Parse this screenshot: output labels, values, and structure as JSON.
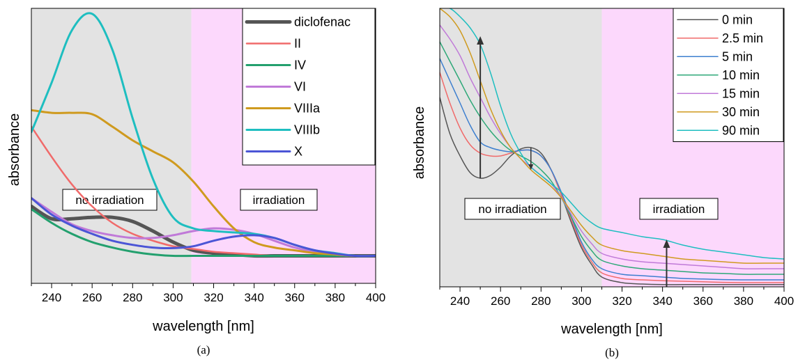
{
  "chart_data": [
    {
      "type": "line",
      "panel_label": "(a)",
      "xlabel": "wavelength [nm]",
      "ylabel": "absorbance",
      "xlim": [
        230,
        400
      ],
      "ylim": [
        0,
        1.0
      ],
      "xticks": [
        240,
        260,
        280,
        300,
        320,
        340,
        360,
        380,
        400
      ],
      "grid": false,
      "legend_position": "top-right",
      "regions": [
        {
          "label": "no irradiation",
          "from": 230,
          "to": 309,
          "color": "#e3e3e3"
        },
        {
          "label": "irradiation",
          "from": 309,
          "to": 400,
          "color": "#fcd8fc"
        }
      ],
      "series": [
        {
          "name": "diclofenac",
          "color": "#555555",
          "width": 5,
          "x": [
            230,
            240,
            250,
            260,
            270,
            280,
            290,
            300,
            310,
            320,
            330,
            340,
            350,
            360,
            370,
            380,
            390,
            400
          ],
          "y": [
            0.28,
            0.235,
            0.235,
            0.24,
            0.24,
            0.225,
            0.19,
            0.15,
            0.12,
            0.11,
            0.105,
            0.1,
            0.1,
            0.1,
            0.1,
            0.1,
            0.1,
            0.1
          ]
        },
        {
          "name": "II",
          "color": "#f06a6a",
          "width": 2.5,
          "x": [
            230,
            240,
            250,
            260,
            270,
            280,
            290,
            300,
            310,
            320,
            330,
            340,
            350,
            360,
            370,
            380,
            390,
            400
          ],
          "y": [
            0.57,
            0.46,
            0.36,
            0.28,
            0.22,
            0.18,
            0.155,
            0.135,
            0.125,
            0.115,
            0.11,
            0.105,
            0.1,
            0.1,
            0.1,
            0.1,
            0.1,
            0.1
          ]
        },
        {
          "name": "IV",
          "color": "#23a06e",
          "width": 3,
          "x": [
            230,
            240,
            250,
            260,
            270,
            280,
            290,
            300,
            310,
            320,
            330,
            340,
            350,
            360,
            370,
            380,
            390,
            400
          ],
          "y": [
            0.27,
            0.22,
            0.18,
            0.15,
            0.13,
            0.115,
            0.105,
            0.1,
            0.1,
            0.1,
            0.1,
            0.1,
            0.1,
            0.1,
            0.1,
            0.1,
            0.1,
            0.1
          ]
        },
        {
          "name": "VI",
          "color": "#c07ad8",
          "width": 3,
          "x": [
            230,
            240,
            250,
            260,
            270,
            280,
            290,
            300,
            310,
            320,
            330,
            340,
            350,
            360,
            370,
            380,
            390,
            400
          ],
          "y": [
            0.31,
            0.26,
            0.215,
            0.19,
            0.175,
            0.165,
            0.165,
            0.175,
            0.19,
            0.2,
            0.195,
            0.18,
            0.155,
            0.13,
            0.115,
            0.105,
            0.1,
            0.1
          ]
        },
        {
          "name": "VIIIa",
          "color": "#cf9a1e",
          "width": 3,
          "x": [
            230,
            240,
            250,
            260,
            270,
            280,
            290,
            300,
            310,
            320,
            330,
            340,
            350,
            360,
            370,
            380,
            390,
            400
          ],
          "y": [
            0.63,
            0.62,
            0.62,
            0.615,
            0.57,
            0.52,
            0.48,
            0.44,
            0.37,
            0.28,
            0.2,
            0.15,
            0.13,
            0.12,
            0.11,
            0.105,
            0.1,
            0.1
          ]
        },
        {
          "name": "VIIIb",
          "color": "#1ebec0",
          "width": 3,
          "x": [
            230,
            240,
            250,
            260,
            270,
            280,
            290,
            300,
            310,
            320,
            330,
            340,
            350,
            360,
            370,
            380,
            390,
            400
          ],
          "y": [
            0.55,
            0.73,
            0.92,
            0.98,
            0.85,
            0.6,
            0.38,
            0.24,
            0.2,
            0.19,
            0.185,
            0.18,
            0.165,
            0.14,
            0.12,
            0.11,
            0.1,
            0.1
          ]
        },
        {
          "name": "X",
          "color": "#4b55d6",
          "width": 3,
          "x": [
            230,
            240,
            250,
            260,
            270,
            280,
            290,
            300,
            310,
            320,
            330,
            340,
            350,
            360,
            370,
            380,
            390,
            400
          ],
          "y": [
            0.31,
            0.25,
            0.21,
            0.18,
            0.155,
            0.14,
            0.13,
            0.128,
            0.135,
            0.155,
            0.17,
            0.175,
            0.165,
            0.14,
            0.12,
            0.108,
            0.1,
            0.1
          ]
        }
      ]
    },
    {
      "type": "line",
      "panel_label": "(b)",
      "xlabel": "wavelength [nm]",
      "ylabel": "absorbance",
      "xlim": [
        230,
        400
      ],
      "ylim": [
        0,
        1.0
      ],
      "xticks": [
        240,
        260,
        280,
        300,
        320,
        340,
        360,
        380,
        400
      ],
      "grid": false,
      "legend_position": "top-right",
      "regions": [
        {
          "label": "no irradiation",
          "from": 230,
          "to": 310,
          "color": "#e3e3e3"
        },
        {
          "label": "irradiation",
          "from": 310,
          "to": 400,
          "color": "#fcd8fc"
        }
      ],
      "annotations": [
        {
          "type": "arrow",
          "x": 250,
          "from": 0.39,
          "to": 0.9
        },
        {
          "type": "arrow",
          "x": 275,
          "from": 0.5,
          "to": 0.42
        },
        {
          "type": "arrow",
          "x": 342,
          "from": 0.0,
          "to": 0.17
        }
      ],
      "series": [
        {
          "name": "0 min",
          "color": "#555555",
          "width": 1.5,
          "x": [
            230,
            235,
            240,
            245,
            250,
            255,
            260,
            265,
            270,
            275,
            280,
            285,
            290,
            295,
            300,
            305,
            310,
            320,
            330,
            340,
            350,
            360,
            370,
            380,
            390,
            400
          ],
          "y": [
            0.68,
            0.55,
            0.47,
            0.41,
            0.39,
            0.4,
            0.43,
            0.47,
            0.495,
            0.5,
            0.48,
            0.42,
            0.33,
            0.23,
            0.14,
            0.08,
            0.035,
            0.015,
            0.01,
            0.008,
            0.008,
            0.008,
            0.008,
            0.008,
            0.008,
            0.008
          ]
        },
        {
          "name": "2.5 min",
          "color": "#f06a6a",
          "width": 1.5,
          "x": [
            230,
            235,
            240,
            245,
            250,
            255,
            260,
            265,
            270,
            275,
            280,
            285,
            290,
            295,
            300,
            305,
            310,
            320,
            330,
            340,
            350,
            360,
            370,
            380,
            390,
            400
          ],
          "y": [
            0.77,
            0.66,
            0.57,
            0.51,
            0.48,
            0.47,
            0.47,
            0.48,
            0.49,
            0.49,
            0.47,
            0.42,
            0.33,
            0.24,
            0.15,
            0.09,
            0.05,
            0.03,
            0.025,
            0.022,
            0.02,
            0.018,
            0.016,
            0.015,
            0.015,
            0.015
          ]
        },
        {
          "name": "5 min",
          "color": "#3d7fcf",
          "width": 1.5,
          "x": [
            230,
            235,
            240,
            245,
            250,
            255,
            260,
            265,
            270,
            275,
            280,
            285,
            290,
            295,
            300,
            305,
            310,
            320,
            330,
            340,
            350,
            360,
            370,
            380,
            390,
            400
          ],
          "y": [
            0.82,
            0.74,
            0.66,
            0.58,
            0.52,
            0.5,
            0.49,
            0.485,
            0.49,
            0.49,
            0.47,
            0.42,
            0.34,
            0.25,
            0.16,
            0.1,
            0.065,
            0.045,
            0.04,
            0.035,
            0.03,
            0.028,
            0.026,
            0.025,
            0.025,
            0.025
          ]
        },
        {
          "name": "10 min",
          "color": "#2ea878",
          "width": 1.5,
          "x": [
            230,
            235,
            240,
            245,
            250,
            255,
            260,
            265,
            270,
            275,
            280,
            285,
            290,
            295,
            300,
            305,
            310,
            320,
            330,
            340,
            350,
            360,
            370,
            380,
            390,
            400
          ],
          "y": [
            0.88,
            0.81,
            0.74,
            0.67,
            0.61,
            0.56,
            0.52,
            0.49,
            0.47,
            0.45,
            0.42,
            0.38,
            0.32,
            0.25,
            0.18,
            0.13,
            0.095,
            0.075,
            0.065,
            0.06,
            0.055,
            0.05,
            0.048,
            0.045,
            0.045,
            0.045
          ]
        },
        {
          "name": "15 min",
          "color": "#c07ad8",
          "width": 1.5,
          "x": [
            230,
            235,
            240,
            245,
            250,
            255,
            260,
            265,
            270,
            275,
            280,
            285,
            290,
            295,
            300,
            305,
            310,
            320,
            330,
            340,
            350,
            360,
            370,
            380,
            390,
            400
          ],
          "y": [
            0.94,
            0.89,
            0.83,
            0.75,
            0.68,
            0.61,
            0.55,
            0.5,
            0.46,
            0.43,
            0.4,
            0.37,
            0.32,
            0.26,
            0.2,
            0.155,
            0.12,
            0.1,
            0.09,
            0.085,
            0.08,
            0.075,
            0.07,
            0.065,
            0.065,
            0.065
          ]
        },
        {
          "name": "30 min",
          "color": "#cf9a1e",
          "width": 1.5,
          "x": [
            230,
            235,
            240,
            245,
            250,
            255,
            260,
            265,
            270,
            275,
            280,
            285,
            290,
            295,
            300,
            305,
            310,
            320,
            330,
            340,
            350,
            360,
            370,
            380,
            390,
            400
          ],
          "y": [
            1.0,
            0.97,
            0.92,
            0.84,
            0.74,
            0.64,
            0.56,
            0.5,
            0.46,
            0.42,
            0.39,
            0.36,
            0.32,
            0.27,
            0.22,
            0.18,
            0.15,
            0.13,
            0.12,
            0.11,
            0.1,
            0.095,
            0.09,
            0.085,
            0.085,
            0.085
          ]
        },
        {
          "name": "90 min",
          "color": "#1ebec0",
          "width": 1.5,
          "x": [
            230,
            235,
            240,
            245,
            250,
            255,
            260,
            265,
            270,
            275,
            280,
            285,
            290,
            295,
            300,
            305,
            310,
            320,
            330,
            340,
            350,
            360,
            370,
            380,
            390,
            400
          ],
          "y": [
            1.0,
            1.0,
            0.97,
            0.93,
            0.87,
            0.77,
            0.65,
            0.55,
            0.48,
            0.43,
            0.4,
            0.37,
            0.34,
            0.3,
            0.26,
            0.23,
            0.21,
            0.195,
            0.18,
            0.17,
            0.15,
            0.135,
            0.125,
            0.115,
            0.105,
            0.1
          ]
        }
      ]
    }
  ]
}
